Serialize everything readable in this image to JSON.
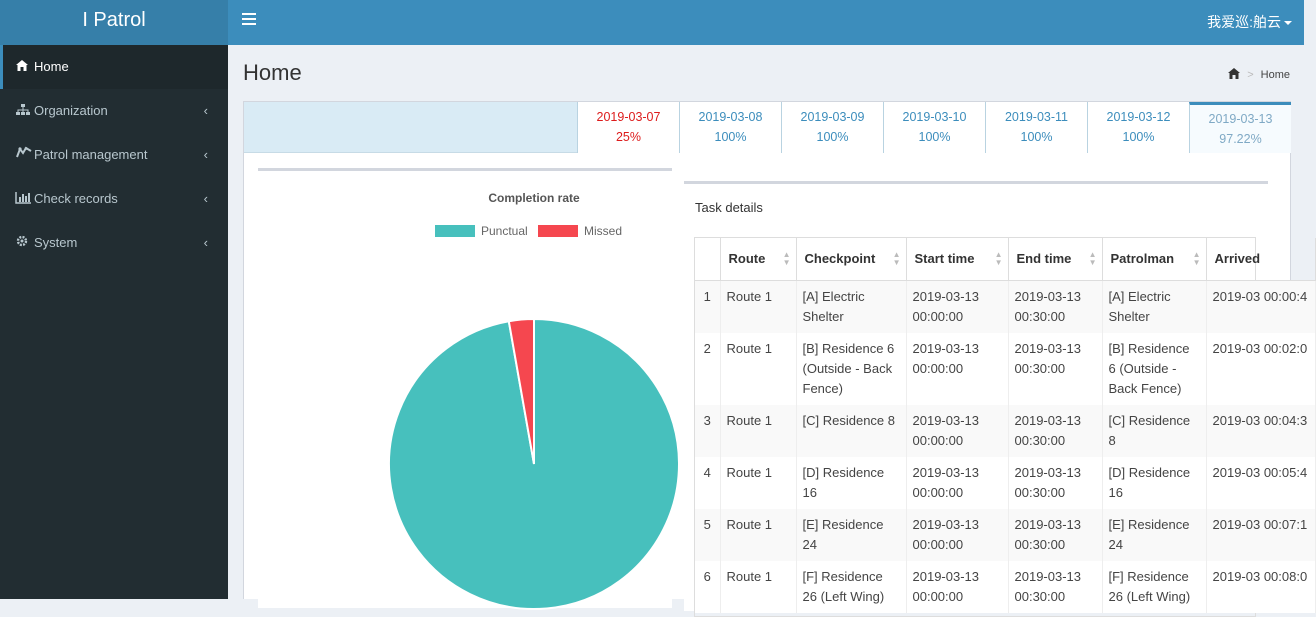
{
  "app": {
    "title": "I Patrol",
    "user": "我爱巡:舶云"
  },
  "sidebar": {
    "items": [
      {
        "label": "Home",
        "icon": "home-icon"
      },
      {
        "label": "Organization",
        "icon": "sitemap-icon"
      },
      {
        "label": "Patrol management",
        "icon": "patrol-icon"
      },
      {
        "label": "Check records",
        "icon": "bar-chart-icon"
      },
      {
        "label": "System",
        "icon": "gear-icon"
      }
    ]
  },
  "page": {
    "title": "Home",
    "breadcrumb": "Home"
  },
  "dates": [
    {
      "date": "2019-03-07",
      "rate": "25%"
    },
    {
      "date": "2019-03-08",
      "rate": "100%"
    },
    {
      "date": "2019-03-09",
      "rate": "100%"
    },
    {
      "date": "2019-03-10",
      "rate": "100%"
    },
    {
      "date": "2019-03-11",
      "rate": "100%"
    },
    {
      "date": "2019-03-12",
      "rate": "100%"
    },
    {
      "date": "2019-03-13",
      "rate": "97.22%"
    }
  ],
  "chart_data": {
    "type": "pie",
    "title": "Completion rate",
    "categories": [
      "Punctual",
      "Missed"
    ],
    "values": [
      97.22,
      2.78
    ],
    "colors": [
      "#47c0bd",
      "#f5474f"
    ],
    "legend": "top"
  },
  "task": {
    "title": "Task details",
    "columns": [
      "",
      "Route",
      "Checkpoint",
      "Start time",
      "End time",
      "Patrolman",
      "Arrived"
    ],
    "rows": [
      [
        "1",
        "Route 1",
        "[A] Electric Shelter",
        "2019-03-13 00:00:00",
        "2019-03-13 00:30:00",
        "[A] Electric Shelter",
        "2019-03 00:00:4"
      ],
      [
        "2",
        "Route 1",
        "[B] Residence 6 (Outside - Back Fence)",
        "2019-03-13 00:00:00",
        "2019-03-13 00:30:00",
        "[B] Residence 6 (Outside - Back Fence)",
        "2019-03 00:02:0"
      ],
      [
        "3",
        "Route 1",
        "[C] Residence 8",
        "2019-03-13 00:00:00",
        "2019-03-13 00:30:00",
        "[C] Residence 8",
        "2019-03 00:04:3"
      ],
      [
        "4",
        "Route 1",
        "[D] Residence 16",
        "2019-03-13 00:00:00",
        "2019-03-13 00:30:00",
        "[D] Residence 16",
        "2019-03 00:05:4"
      ],
      [
        "5",
        "Route 1",
        "[E] Residence 24",
        "2019-03-13 00:00:00",
        "2019-03-13 00:30:00",
        "[E] Residence 24",
        "2019-03 00:07:1"
      ],
      [
        "6",
        "Route 1",
        "[F] Residence 26 (Left Wing)",
        "2019-03-13 00:00:00",
        "2019-03-13 00:30:00",
        "[F] Residence 26 (Left Wing)",
        "2019-03 00:08:0"
      ]
    ]
  }
}
